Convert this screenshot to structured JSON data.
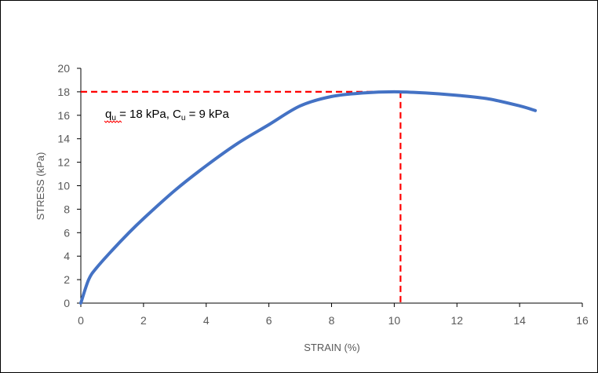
{
  "chart_data": {
    "type": "line",
    "title": "",
    "xlabel": "STRAIN (%)",
    "ylabel": "STRESS (kPa)",
    "xlim": [
      0,
      16
    ],
    "ylim": [
      0,
      20
    ],
    "xticks": [
      0,
      2,
      4,
      6,
      8,
      10,
      12,
      14,
      16
    ],
    "yticks": [
      0,
      2,
      4,
      6,
      8,
      10,
      12,
      14,
      16,
      18,
      20
    ],
    "grid": false,
    "series": [
      {
        "color": "#4472C4",
        "x": [
          0,
          0.25,
          0.5,
          1,
          1.5,
          2,
          3,
          4,
          5,
          6,
          7,
          8,
          9,
          10,
          11,
          12,
          13,
          14,
          14.5
        ],
        "y": [
          0,
          2.0,
          3.0,
          4.5,
          5.9,
          7.2,
          9.6,
          11.7,
          13.6,
          15.2,
          16.8,
          17.6,
          17.9,
          18.0,
          17.9,
          17.7,
          17.4,
          16.8,
          16.4
        ]
      }
    ],
    "reference_lines": {
      "color": "#FF0000",
      "peak_x": 10.2,
      "peak_y": 18
    },
    "annotation": {
      "q_letter": "q",
      "q_sub": "u",
      "q_rest": " = 18 kPa, C",
      "c_sub": "u",
      "c_rest": " = 9 kPa"
    }
  }
}
